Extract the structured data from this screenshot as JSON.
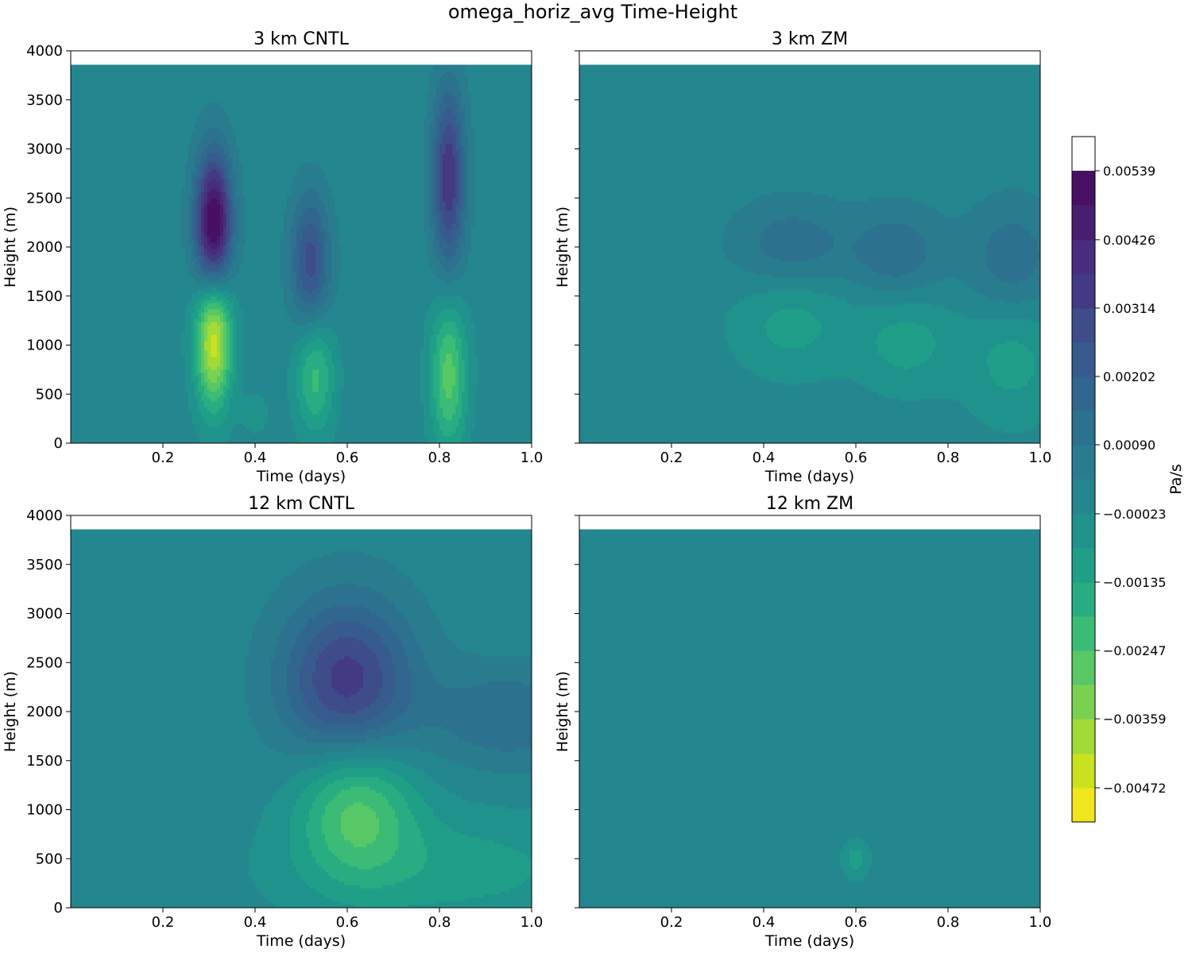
{
  "figure": {
    "suptitle": "omega_horiz_avg Time-Height",
    "colorbar": {
      "label": "Pa/s",
      "levels": [
        -0.00528,
        -0.00472,
        -0.00416,
        -0.00359,
        -0.00303,
        -0.00247,
        -0.00191,
        -0.00135,
        -0.00079,
        -0.00023,
        0.00034,
        0.0009,
        0.00146,
        0.00202,
        0.00258,
        0.00314,
        0.0037,
        0.00426,
        0.00483,
        0.00539,
        0.00595
      ],
      "tick_labels": [
        "−0.00472",
        "−0.00359",
        "−0.00247",
        "−0.00135",
        "−0.00023",
        "0.00090",
        "0.00202",
        "0.00314",
        "0.00426",
        "0.00539"
      ],
      "tick_values": [
        -0.00472,
        -0.00359,
        -0.00247,
        -0.00135,
        -0.00023,
        0.0009,
        0.00202,
        0.00314,
        0.00426,
        0.00539
      ],
      "colors": [
        "#f1e51d",
        "#cae11f",
        "#a2da37",
        "#7ad151",
        "#58c765",
        "#3bbb75",
        "#27ad81",
        "#1f9f88",
        "#20928c",
        "#24868e",
        "#287c8e",
        "#2c718e",
        "#31668e",
        "#375b8d",
        "#3e4c8a",
        "#443a83",
        "#472d7b",
        "#481f70",
        "#471063"
      ]
    }
  },
  "chart_data": [
    {
      "type": "heatmap",
      "title": "3 km CNTL",
      "xlabel": "Time (days)",
      "ylabel": "Height (m)",
      "xlim": [
        0.0,
        1.0
      ],
      "ylim": [
        0,
        4000
      ],
      "xticks": [
        "0.2",
        "0.4",
        "0.6",
        "0.8",
        "1.0"
      ],
      "yticks": [
        "0",
        "500",
        "1000",
        "1500",
        "2000",
        "2500",
        "3000",
        "3500",
        "4000"
      ],
      "data_top": 3860,
      "background_value": 5e-05,
      "features": [
        {
          "t": 0.31,
          "z": 2200,
          "dt": 0.028,
          "dz": 520,
          "peak": 0.0058
        },
        {
          "t": 0.52,
          "z": 1850,
          "dt": 0.03,
          "dz": 480,
          "peak": 0.0028
        },
        {
          "t": 0.82,
          "z": 2700,
          "dt": 0.025,
          "dz": 650,
          "peak": 0.0036
        },
        {
          "t": 0.31,
          "z": 1100,
          "dt": 0.028,
          "dz": 500,
          "peak": -0.0049
        },
        {
          "t": 0.53,
          "z": 700,
          "dt": 0.03,
          "dz": 420,
          "peak": -0.0022
        },
        {
          "t": 0.82,
          "z": 700,
          "dt": 0.028,
          "dz": 550,
          "peak": -0.0028
        },
        {
          "t": 0.4,
          "z": 300,
          "dt": 0.02,
          "dz": 130,
          "peak": -0.0008
        }
      ]
    },
    {
      "type": "heatmap",
      "title": "3 km ZM",
      "xlabel": "Time (days)",
      "ylabel": "Height (m)",
      "xlim": [
        0.0,
        1.0
      ],
      "ylim": [
        0,
        4000
      ],
      "xticks": [
        "0.2",
        "0.4",
        "0.6",
        "0.8",
        "1.0"
      ],
      "yticks": [],
      "data_top": 3860,
      "background_value": 5e-05,
      "features": [
        {
          "t": 0.46,
          "z": 2000,
          "dt": 0.09,
          "dz": 330,
          "peak": 0.0013
        },
        {
          "t": 0.69,
          "z": 1930,
          "dt": 0.07,
          "dz": 330,
          "peak": 0.0013
        },
        {
          "t": 0.94,
          "z": 1850,
          "dt": 0.07,
          "dz": 430,
          "peak": 0.0013
        },
        {
          "t": 0.46,
          "z": 1250,
          "dt": 0.09,
          "dz": 390,
          "peak": -0.0011
        },
        {
          "t": 0.71,
          "z": 1040,
          "dt": 0.075,
          "dz": 360,
          "peak": -0.0011
        },
        {
          "t": 0.94,
          "z": 880,
          "dt": 0.075,
          "dz": 470,
          "peak": -0.0011
        }
      ]
    },
    {
      "type": "heatmap",
      "title": "12 km CNTL",
      "xlabel": "Time (days)",
      "ylabel": "Height (m)",
      "xlim": [
        0.0,
        1.0
      ],
      "ylim": [
        0,
        4000
      ],
      "xticks": [
        "0.2",
        "0.4",
        "0.6",
        "0.8",
        "1.0"
      ],
      "yticks": [
        "0",
        "500",
        "1000",
        "1500",
        "2000",
        "2500",
        "3000",
        "3500",
        "4000"
      ],
      "data_top": 3860,
      "background_value": 5e-05,
      "features": [
        {
          "t": 0.6,
          "z": 2300,
          "dt": 0.1,
          "dz": 600,
          "peak": 0.0034
        },
        {
          "t": 0.95,
          "z": 1950,
          "dt": 0.12,
          "dz": 350,
          "peak": 0.0014
        },
        {
          "t": 0.62,
          "z": 1050,
          "dt": 0.09,
          "dz": 500,
          "peak": -0.0027
        },
        {
          "t": 0.82,
          "z": 400,
          "dt": 0.25,
          "dz": 420,
          "peak": -0.0011
        }
      ]
    },
    {
      "type": "heatmap",
      "title": "12 km ZM",
      "xlabel": "Time (days)",
      "ylabel": "Height (m)",
      "xlim": [
        0.0,
        1.0
      ],
      "ylim": [
        0,
        4000
      ],
      "xticks": [
        "0.2",
        "0.4",
        "0.6",
        "0.8",
        "1.0"
      ],
      "yticks": [],
      "data_top": 3860,
      "background_value": 5e-05,
      "features": [
        {
          "t": 0.6,
          "z": 500,
          "dt": 0.02,
          "dz": 140,
          "peak": -0.0011
        }
      ]
    }
  ]
}
